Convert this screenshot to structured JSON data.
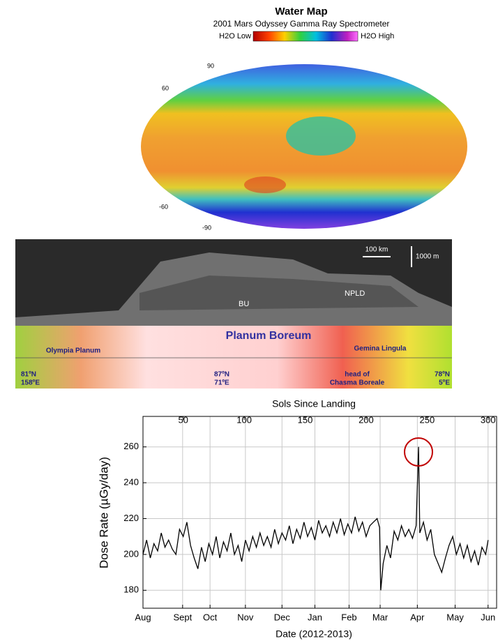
{
  "water_map": {
    "title": "Water Map",
    "subtitle": "2001 Mars Odyssey Gamma Ray Spectrometer",
    "legend_low": "H2O Low",
    "legend_high": "H2O High",
    "lat_labels": [
      "90",
      "60",
      "-60",
      "-90"
    ]
  },
  "radargram": {
    "scale_horizontal": "100 km",
    "scale_vertical": "1000 m",
    "unit_labels": [
      "NPLD",
      "BU"
    ],
    "region": "Planum Boreum",
    "places": [
      "Olympia Planum",
      "Gemina Lingula"
    ],
    "locations": [
      [
        "81ºN",
        "158ºE"
      ],
      [
        "87ºN",
        "71ºE"
      ],
      [
        "head of",
        "Chasma Boreale"
      ],
      [
        "78ºN",
        "5ºE"
      ]
    ]
  },
  "chart_data": {
    "type": "line",
    "top_axis_label": "Sols Since Landing",
    "x_label": "Date (2012-2013)",
    "y_label": "Dose Rate (µGy/day)",
    "x": [
      17,
      20,
      23,
      26,
      29,
      32,
      35,
      38,
      41,
      44,
      47,
      50,
      53,
      56,
      59,
      62,
      65,
      68,
      71,
      74,
      77,
      80,
      83,
      86,
      89,
      92,
      95,
      98,
      101,
      104,
      107,
      110,
      113,
      116,
      119,
      122,
      125,
      128,
      131,
      134,
      137,
      140,
      143,
      146,
      149,
      152,
      155,
      158,
      161,
      164,
      167,
      170,
      173,
      176,
      179,
      182,
      185,
      188,
      191,
      194,
      197,
      200,
      203,
      206,
      209,
      211,
      212,
      214,
      217,
      220,
      223,
      226,
      229,
      232,
      235,
      238,
      241,
      243,
      244,
      247,
      250,
      253,
      256,
      259,
      262,
      265,
      268,
      271,
      274,
      277,
      280,
      283,
      286,
      289,
      292,
      295,
      298,
      300
    ],
    "series": [
      {
        "color": "#000000",
        "values": [
          200,
          208,
          198,
          206,
          202,
          212,
          204,
          208,
          203,
          200,
          214,
          210,
          218,
          205,
          198,
          192,
          204,
          196,
          206,
          200,
          210,
          198,
          207,
          202,
          212,
          200,
          205,
          196,
          208,
          202,
          210,
          204,
          212,
          205,
          210,
          204,
          214,
          206,
          212,
          208,
          216,
          206,
          214,
          209,
          218,
          210,
          215,
          208,
          219,
          212,
          216,
          210,
          218,
          212,
          220,
          211,
          217,
          212,
          221,
          213,
          218,
          210,
          216,
          218,
          220,
          215,
          180,
          195,
          205,
          198,
          213,
          208,
          216,
          210,
          214,
          209,
          216,
          260,
          212,
          218,
          208,
          214,
          200,
          195,
          190,
          198,
          205,
          210,
          200,
          206,
          198,
          205,
          196,
          202,
          194,
          204,
          200,
          208
        ]
      }
    ],
    "xlim": [
      17,
      307
    ],
    "xticks": [
      50,
      100,
      150,
      200,
      250,
      300
    ],
    "date_ticks": [
      {
        "value": 17,
        "label": "Aug"
      },
      {
        "value": 49.5,
        "label": "Sept"
      },
      {
        "value": 72,
        "label": "Oct"
      },
      {
        "value": 101,
        "label": "Nov"
      },
      {
        "value": 131,
        "label": "Dec"
      },
      {
        "value": 158,
        "label": "Jan"
      },
      {
        "value": 186,
        "label": "Feb"
      },
      {
        "value": 211.5,
        "label": "Mar"
      },
      {
        "value": 242,
        "label": "Apr"
      },
      {
        "value": 273,
        "label": "May"
      },
      {
        "value": 300,
        "label": "Jun"
      }
    ],
    "ylim": [
      170,
      277
    ],
    "yticks": [
      180,
      200,
      220,
      240,
      260
    ],
    "grid": true
  }
}
